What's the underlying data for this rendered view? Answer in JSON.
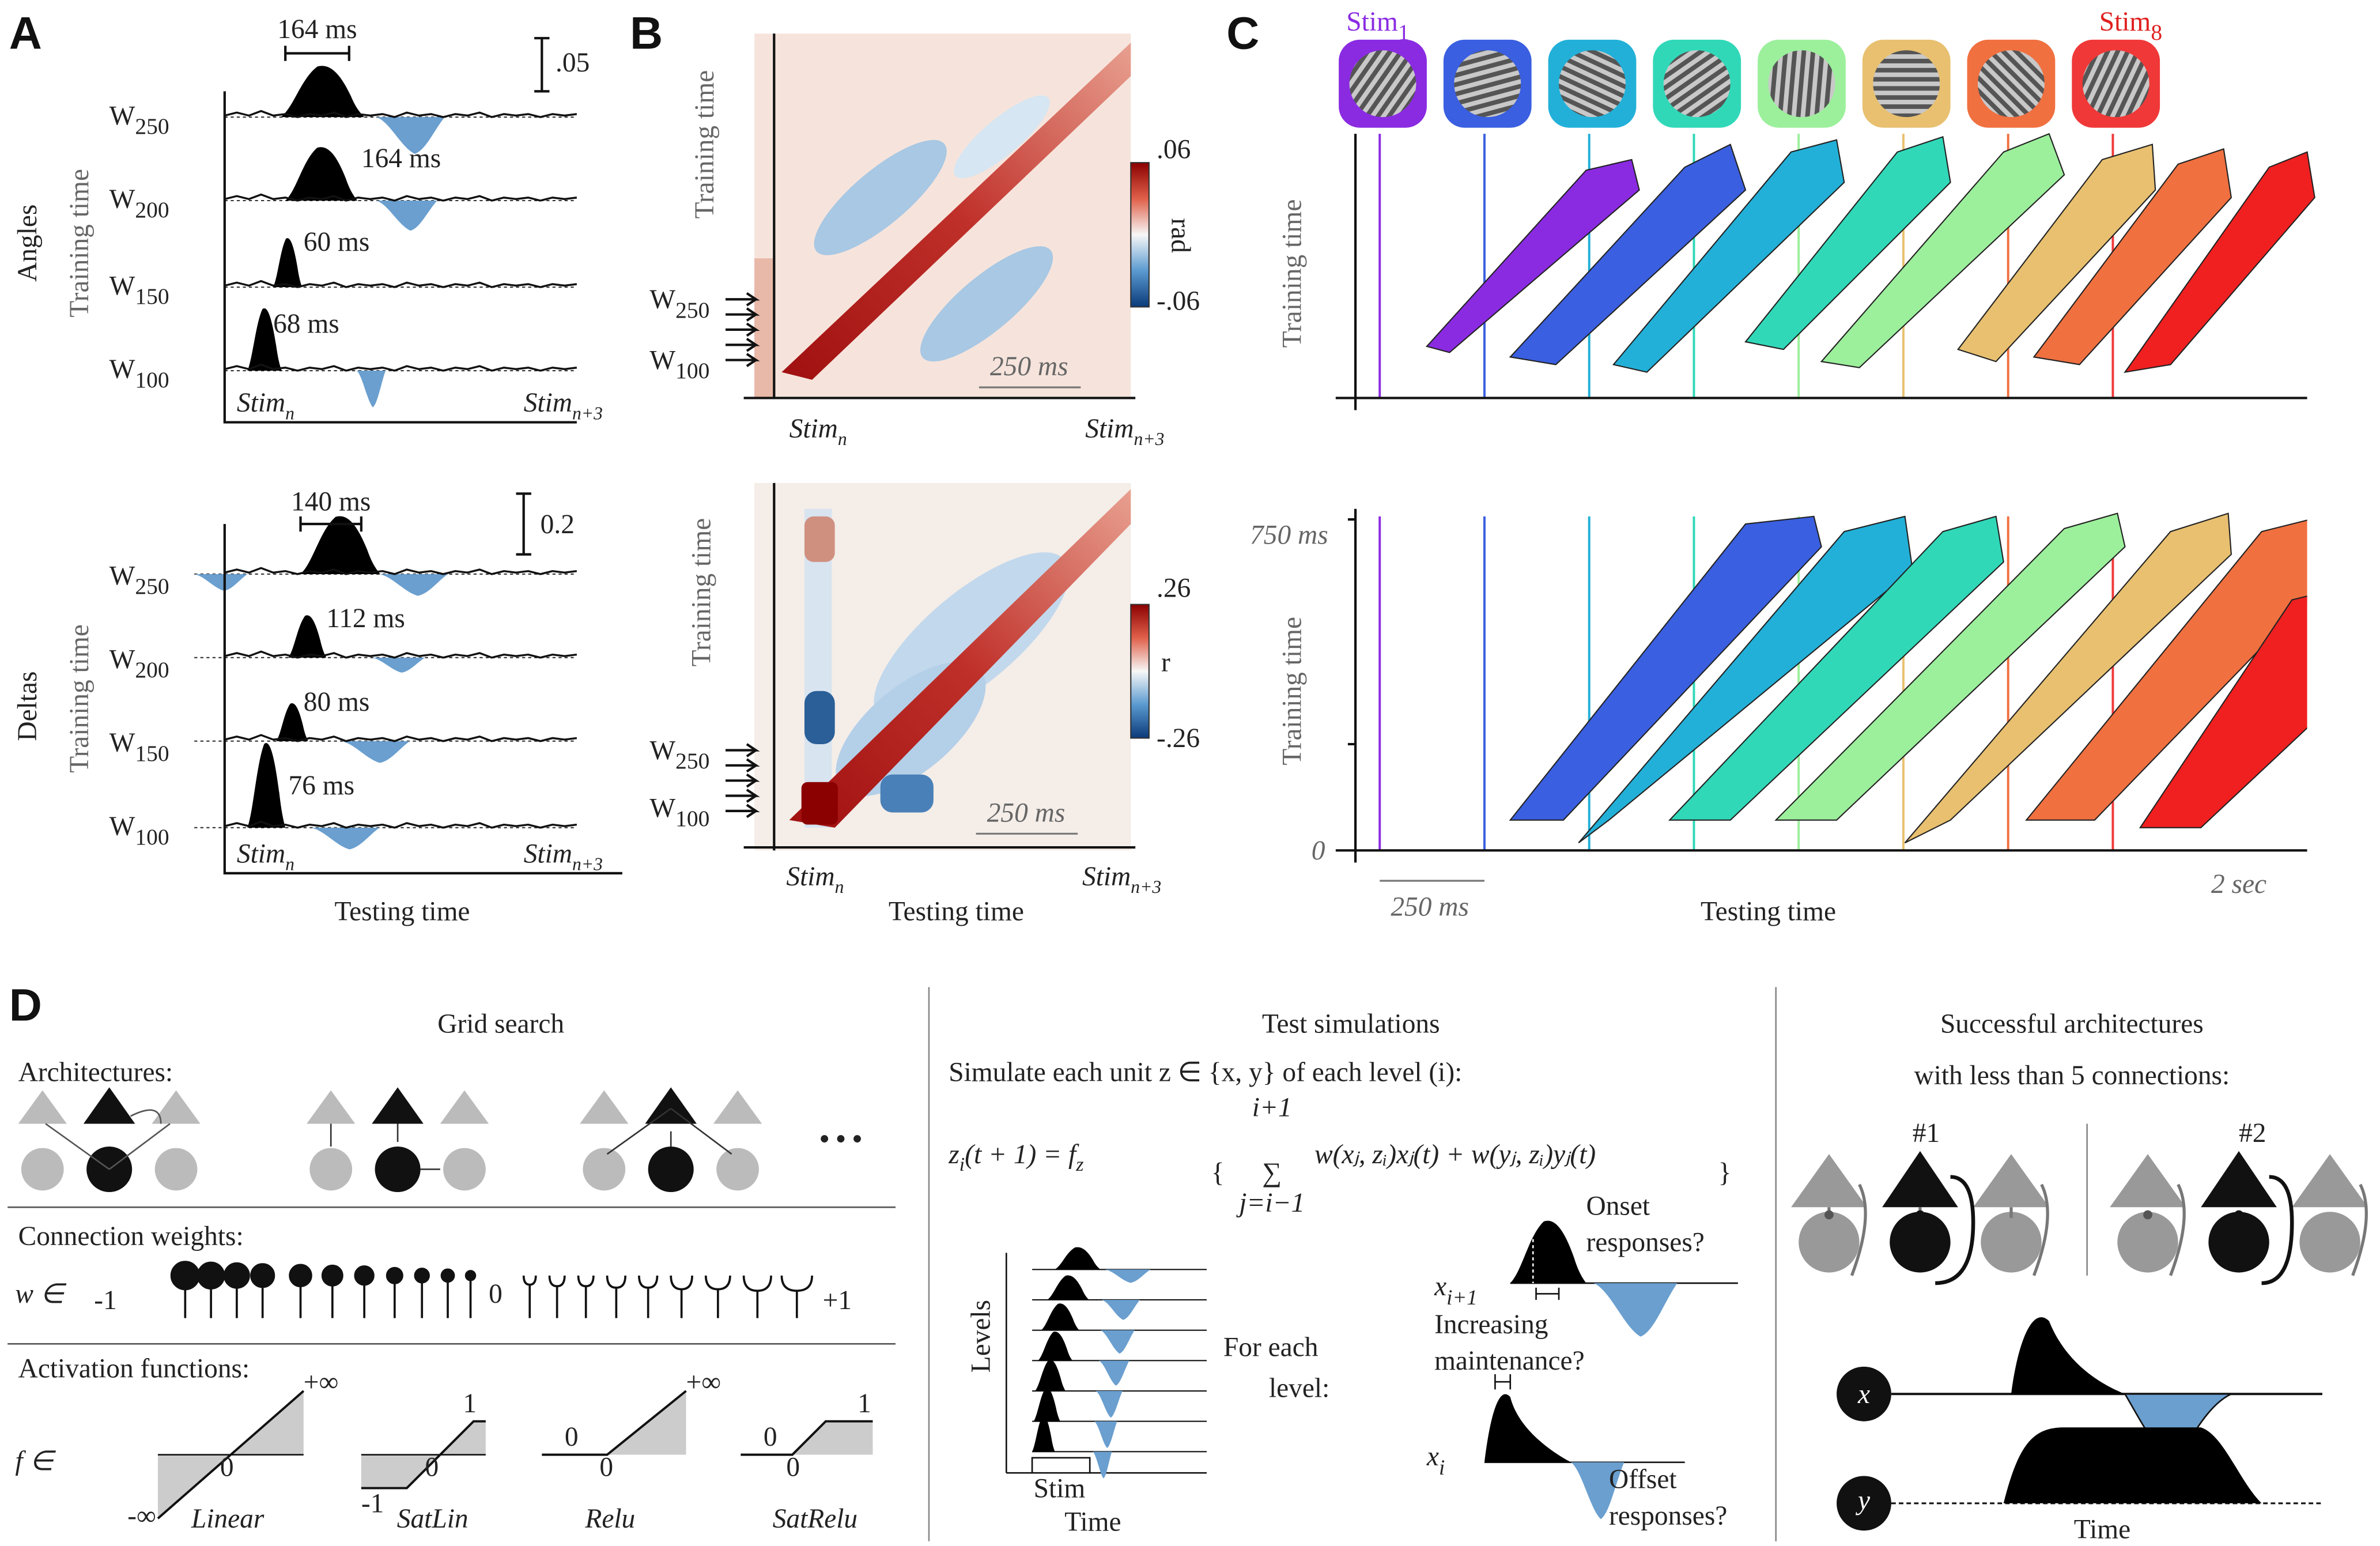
{
  "panel_a": {
    "letter": "A",
    "angles": {
      "title": "Angles",
      "ylabel": "Training time",
      "scale": ".05",
      "bracket": "164 ms",
      "rows": [
        {
          "w": "W",
          "sub": "250"
        },
        {
          "w": "W",
          "sub": "200",
          "latency": "164 ms"
        },
        {
          "w": "W",
          "sub": "150",
          "latency": "60 ms"
        },
        {
          "w": "W",
          "sub": "100",
          "latency": "68 ms"
        }
      ],
      "stim_start": {
        "main": "Stim",
        "sub": "n"
      },
      "stim_end": {
        "main": "Stim",
        "sub": "n+3"
      }
    },
    "deltas": {
      "title": "Deltas",
      "ylabel": "Training time",
      "scale": "0.2",
      "bracket": "140 ms",
      "rows": [
        {
          "w": "W",
          "sub": "250"
        },
        {
          "w": "W",
          "sub": "200",
          "latency": "112 ms"
        },
        {
          "w": "W",
          "sub": "150",
          "latency": "80 ms"
        },
        {
          "w": "W",
          "sub": "100",
          "latency": "76 ms"
        }
      ],
      "stim_start": {
        "main": "Stim",
        "sub": "n"
      },
      "stim_end": {
        "main": "Stim",
        "sub": "n+3"
      },
      "xlabel": "Testing time"
    }
  },
  "panel_b": {
    "letter": "B",
    "top": {
      "ylabel": "Training time",
      "cbar_max": ".06",
      "cbar_unit": "rad",
      "cbar_min": "-.06",
      "w_high": {
        "w": "W",
        "sub": "250"
      },
      "w_low": {
        "w": "W",
        "sub": "100"
      },
      "scalebar": "250 ms",
      "stim_start": {
        "main": "Stim",
        "sub": "n"
      },
      "stim_end": {
        "main": "Stim",
        "sub": "n+3"
      }
    },
    "bottom": {
      "ylabel": "Training time",
      "cbar_max": ".26",
      "cbar_unit": "r",
      "cbar_min": "-.26",
      "w_high": {
        "w": "W",
        "sub": "250"
      },
      "w_low": {
        "w": "W",
        "sub": "100"
      },
      "scalebar": "250 ms",
      "stim_start": {
        "main": "Stim",
        "sub": "n"
      },
      "stim_end": {
        "main": "Stim",
        "sub": "n+3"
      },
      "xlabel": "Testing time"
    }
  },
  "panel_c": {
    "letter": "C",
    "stim_first": {
      "main": "Stim",
      "sub": "1"
    },
    "stim_last": {
      "main": "Stim",
      "sub": "8"
    },
    "top_ylabel": "Training time",
    "bottom_ylabel": "Training time",
    "y_top_tick": "750 ms",
    "y_zero_tick": "0",
    "scalebar": "250 ms",
    "xlabel": "Testing time",
    "x_end": "2 sec"
  },
  "panel_d": {
    "letter": "D",
    "grid_search": {
      "title": "Grid search",
      "architectures": "Architectures:",
      "ellipsis": "• • •",
      "weights_title": "Connection weights:",
      "weights_symbol": "w ∈",
      "w_min": "-1",
      "w_mid": "0",
      "w_max": "+1",
      "activation_title": "Activation functions:",
      "f_symbol": "f ∈",
      "linear": {
        "name": "Linear",
        "top": "+∞",
        "zero": "0",
        "bottom": "-∞"
      },
      "satlin": {
        "name": "SatLin",
        "top": "1",
        "zero": "0",
        "bottom": "-1"
      },
      "relu": {
        "name": "Relu",
        "top": "+∞",
        "left": "0",
        "zero": "0"
      },
      "satrelu": {
        "name": "SatRelu",
        "top": "1",
        "left": "0",
        "zero": "0"
      }
    },
    "test_simulations": {
      "title": "Test simulations",
      "instruction": "Simulate each unit z ∈ {x, y} of each level (i):",
      "equation": {
        "lhs": "z",
        "lhs_sub": "i",
        "mid": "(t + 1) = f",
        "f_sub": "z",
        "sum_top": "i+1",
        "sum": "∑",
        "sum_bottom": "j=i−1",
        "body": "w(xⱼ, zᵢ)xⱼ(t) + w(yⱼ, zᵢ)yⱼ(t)"
      },
      "levels": "Levels",
      "stim": "Stim",
      "time": "Time",
      "for_each": [
        "For each",
        "level:"
      ],
      "x_next": {
        "main": "x",
        "sub": "i+1"
      },
      "x_cur": {
        "main": "x",
        "sub": "i"
      },
      "onset": [
        "Onset",
        "responses?"
      ],
      "maintenance": [
        "Increasing",
        "maintenance?"
      ],
      "offset": [
        "Offset",
        "responses?"
      ]
    },
    "successful": {
      "title": [
        "Successful architectures",
        "with less than 5 connections:"
      ],
      "first": "#1",
      "second": "#2",
      "x": "x",
      "y": "y",
      "time": "Time"
    }
  }
}
